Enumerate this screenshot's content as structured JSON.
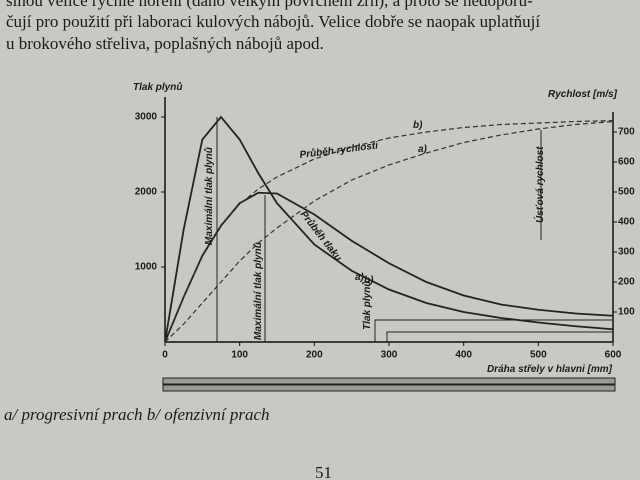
{
  "text_lines": [
    "šinou velice rychlé hoření (dáno velkým povrchem zrn), a proto se nedoporu-",
    "čují pro použití při laboraci kulových nábojů. Velice dobře se naopak uplatňují",
    "u brokového střeliva, poplašných nábojů apod."
  ],
  "chart_data": {
    "type": "line",
    "y_label": "Tlak plynů",
    "y2_label": "Rychlost [m/s]",
    "x_label": "Dráha střely v hlavni [mm]",
    "x": [
      0,
      25,
      50,
      75,
      100,
      125,
      150,
      200,
      250,
      300,
      350,
      400,
      450,
      500,
      550,
      600
    ],
    "xlim": [
      0,
      600
    ],
    "xticks": [
      0,
      100,
      200,
      300,
      400,
      500,
      600
    ],
    "ylim": [
      0,
      3200
    ],
    "yticks": [
      1000,
      2000,
      3000
    ],
    "y2lim": [
      0,
      800
    ],
    "y2ticks": [
      100,
      200,
      300,
      400,
      500,
      600,
      700
    ],
    "series": [
      {
        "name": "a)",
        "color": "#222",
        "values": [
          0,
          600,
          1150,
          1550,
          1850,
          1990,
          1980,
          1700,
          1350,
          1050,
          800,
          620,
          500,
          430,
          380,
          350
        ]
      },
      {
        "name": "b)",
        "color": "#222",
        "values": [
          0,
          1500,
          2700,
          3000,
          2700,
          2250,
          1850,
          1300,
          950,
          700,
          520,
          400,
          320,
          260,
          210,
          170
        ]
      },
      {
        "name": "b)",
        "color": "#333",
        "axis": "y2",
        "dashed": true,
        "values": [
          0,
          150,
          290,
          390,
          460,
          510,
          550,
          610,
          650,
          680,
          700,
          715,
          725,
          730,
          735,
          738
        ]
      },
      {
        "name": "a)",
        "color": "#333",
        "axis": "y2",
        "dashed": true,
        "values": [
          0,
          60,
          130,
          200,
          270,
          330,
          380,
          470,
          540,
          590,
          630,
          665,
          690,
          710,
          725,
          735
        ]
      }
    ],
    "annotations": [
      "Průběh rychlosti",
      "Průběh tlaku",
      "Maximální tlak plynů",
      "Maximální tlak plynů",
      "Úsťová rychlost",
      "Tlak plynů"
    ]
  },
  "caption": "a/ progresivní prach b/ ofenzivní prach",
  "page_number": "51"
}
